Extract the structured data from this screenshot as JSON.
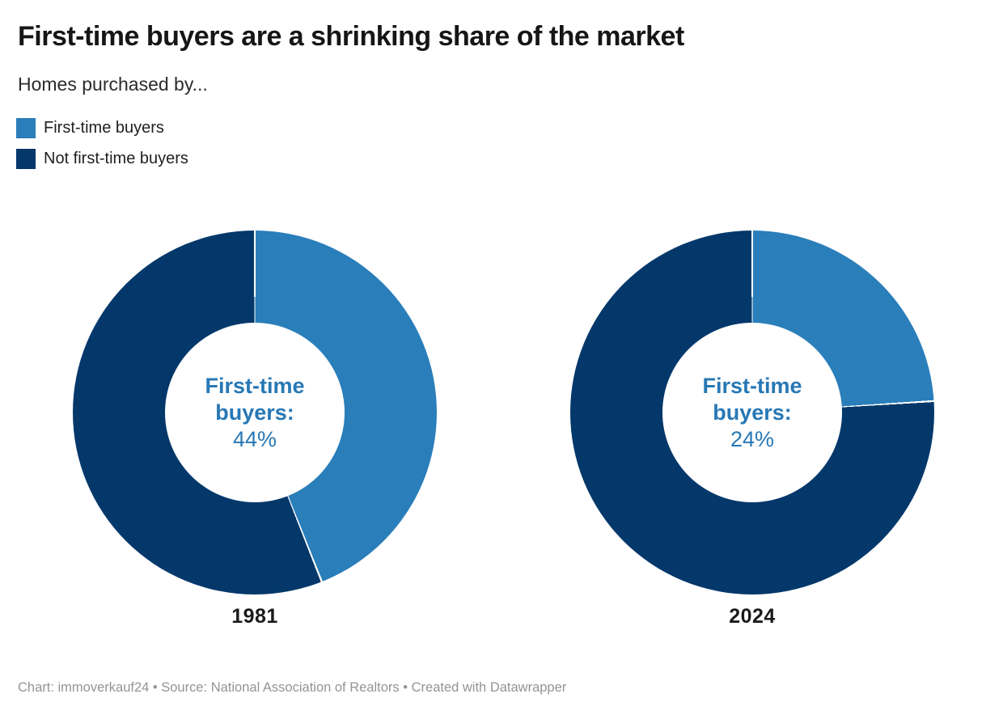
{
  "header": {
    "title": "First-time buyers are a shrinking share of the market",
    "subtitle": "Homes purchased by..."
  },
  "legend": {
    "items": [
      {
        "label": "First-time buyers",
        "color": "#2a7eba"
      },
      {
        "label": "Not first-time buyers",
        "color": "#04386b"
      }
    ]
  },
  "colors": {
    "first_time_blue": "#2a7eba",
    "not_first_time_navy": "#04386b",
    "center_text": "#2878b5",
    "title_text": "#161616",
    "footer_text": "#949494",
    "background": "#ffffff"
  },
  "chart_data": [
    {
      "type": "pie",
      "subtype": "donut",
      "category": "1981",
      "slices": [
        {
          "label": "First-time buyers",
          "value": 44,
          "color": "#2a7eba"
        },
        {
          "label": "Not first-time buyers",
          "value": 56,
          "color": "#04386b"
        }
      ],
      "start_angle_deg": 0,
      "direction": "clockwise",
      "center_label": "First-time buyers:",
      "center_value": "44%"
    },
    {
      "type": "pie",
      "subtype": "donut",
      "category": "2024",
      "slices": [
        {
          "label": "First-time buyers",
          "value": 24,
          "color": "#2a7eba"
        },
        {
          "label": "Not first-time buyers",
          "value": 76,
          "color": "#04386b"
        }
      ],
      "start_angle_deg": 0,
      "direction": "clockwise",
      "center_label": "First-time buyers:",
      "center_value": "24%"
    }
  ],
  "footer": {
    "attribution": "Chart: immoverkauf24 • Source: National Association of Realtors • Created with Datawrapper"
  }
}
